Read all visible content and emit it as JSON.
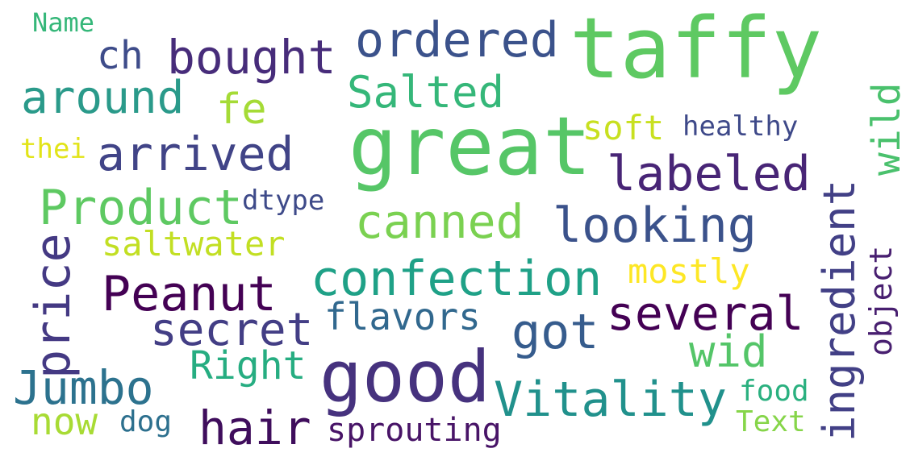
{
  "words": [
    {
      "text": "taffy",
      "color": "#5ec962"
    },
    {
      "text": "great",
      "color": "#56c667"
    },
    {
      "text": "good",
      "color": "#46327e"
    },
    {
      "text": "ordered",
      "color": "#3b528b"
    },
    {
      "text": "bought",
      "color": "#472c7a"
    },
    {
      "text": "around",
      "color": "#2a9a8a"
    },
    {
      "text": "Salted",
      "color": "#35b779"
    },
    {
      "text": "fe",
      "color": "#a5db36"
    },
    {
      "text": "ch",
      "color": "#3e4c8a"
    },
    {
      "text": "Name",
      "color": "#35b779"
    },
    {
      "text": "wild",
      "color": "#4ac16d"
    },
    {
      "text": "soft",
      "color": "#c8e020"
    },
    {
      "text": "healthy",
      "color": "#3e4989"
    },
    {
      "text": "arrived",
      "color": "#414487"
    },
    {
      "text": "thei",
      "color": "#e2e418"
    },
    {
      "text": "labeled",
      "color": "#482576"
    },
    {
      "text": "Product",
      "color": "#5ec962"
    },
    {
      "text": "dtype",
      "color": "#3e4a89"
    },
    {
      "text": "canned",
      "color": "#7ad151"
    },
    {
      "text": "looking",
      "color": "#3b528b"
    },
    {
      "text": "ingredient",
      "color": "#424086"
    },
    {
      "text": "saltwater",
      "color": "#c2df23"
    },
    {
      "text": "price",
      "color": "#443983"
    },
    {
      "text": "Peanut",
      "color": "#440154"
    },
    {
      "text": "confection",
      "color": "#1fa187"
    },
    {
      "text": "mostly",
      "color": "#fde725"
    },
    {
      "text": "several",
      "color": "#440154"
    },
    {
      "text": "object",
      "color": "#481f70"
    },
    {
      "text": "flavors",
      "color": "#31688e"
    },
    {
      "text": "secret",
      "color": "#433e85"
    },
    {
      "text": "got",
      "color": "#365c8d"
    },
    {
      "text": "wid",
      "color": "#54c568"
    },
    {
      "text": "Right",
      "color": "#26ad81"
    },
    {
      "text": "Jumbo",
      "color": "#2c728e"
    },
    {
      "text": "Vitality",
      "color": "#21918c"
    },
    {
      "text": "food",
      "color": "#2ab07f"
    },
    {
      "text": "now",
      "color": "#a8db34"
    },
    {
      "text": "dog",
      "color": "#2d708e"
    },
    {
      "text": "hair",
      "color": "#3f0d5c"
    },
    {
      "text": "sprouting",
      "color": "#481467"
    },
    {
      "text": "Text",
      "color": "#86d549"
    }
  ]
}
